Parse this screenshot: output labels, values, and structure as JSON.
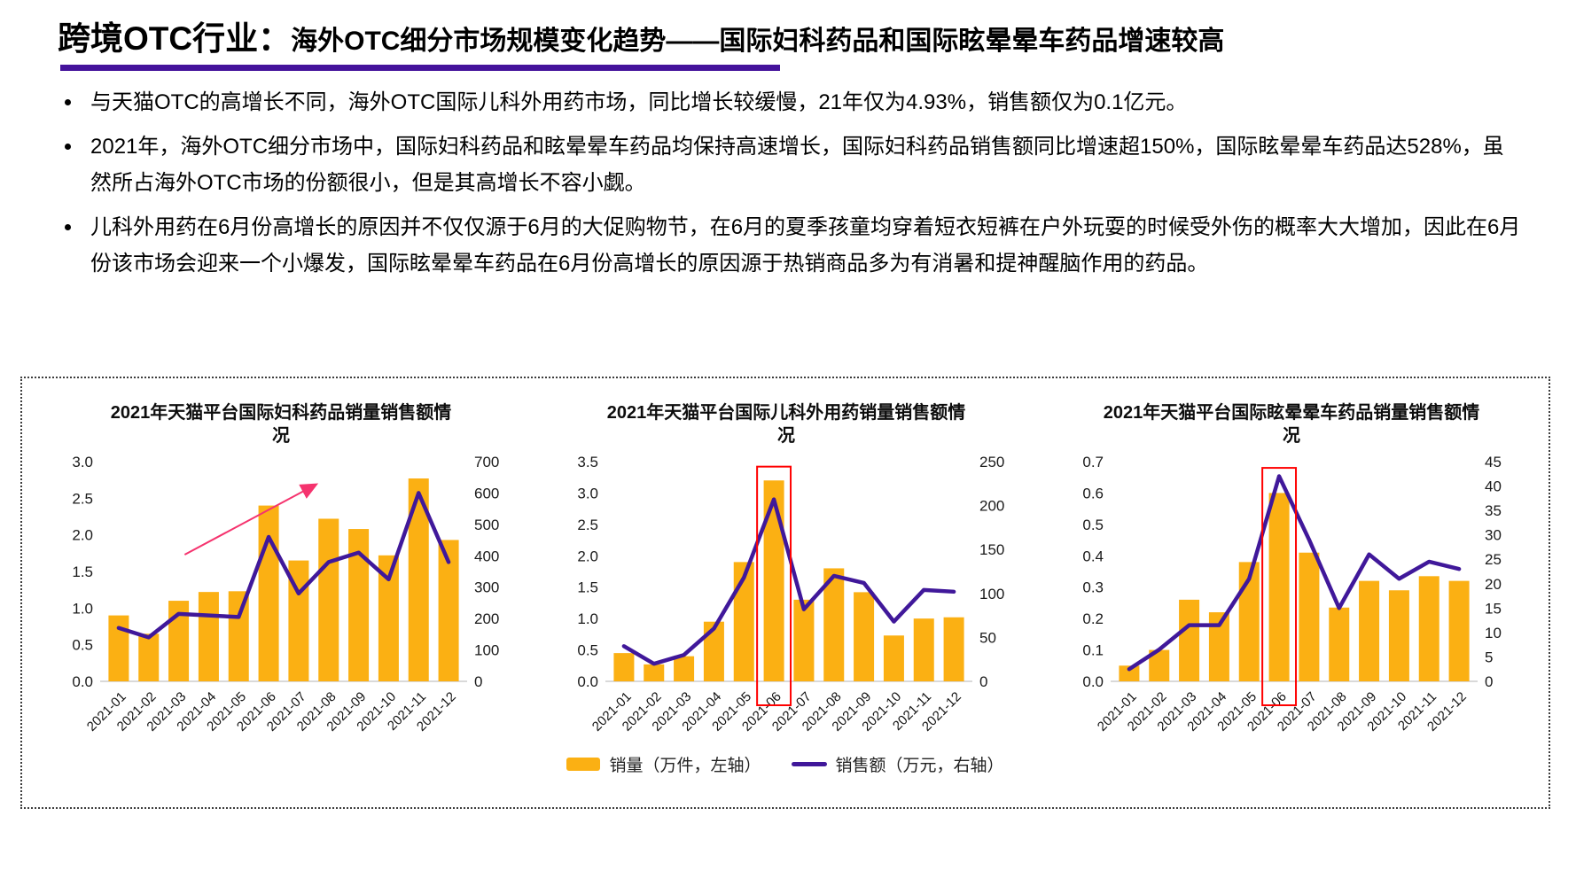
{
  "header": {
    "title_prefix": "跨境OTC行业：",
    "title_main": "海外OTC细分市场规模变化趋势——国际妇科药品和国际眩晕晕车药品增速较高"
  },
  "bullets": [
    "与天猫OTC的高增长不同，海外OTC国际儿科外用药市场，同比增长较缓慢，21年仅为4.93%，销售额仅为0.1亿元。",
    "2021年，海外OTC细分市场中，国际妇科药品和眩晕晕车药品均保持高速增长，国际妇科药品销售额同比增速超150%，国际眩晕晕车药品达528%，虽然所占海外OTC市场的份额很小，但是其高增长不容小觑。",
    "儿科外用药在6月份高增长的原因并不仅仅源于6月的大促购物节，在6月的夏季孩童均穿着短衣短裤在户外玩耍的时候受外伤的概率大大增加，因此在6月份该市场会迎来一个小爆发，国际眩晕晕车药品在6月份高增长的原因源于热销商品多为有消暑和提神醒脑作用的药品。"
  ],
  "legend": {
    "bar_label": "销量（万件，左轴）",
    "line_label": "销售额（万元，右轴）"
  },
  "colors": {
    "bar": "#FBB013",
    "line": "#40189A",
    "underline": "#44129B",
    "trend_arrow": "#F5336E",
    "highlight_box": "#FF0000",
    "axis_baseline": "#D9D9D9",
    "tick_text": "#1a1a1a"
  },
  "chart_data": [
    {
      "type": "bar",
      "title": "2021年天猫平台国际妇科药品销量销售额情况",
      "categories": [
        "2021-01",
        "2021-02",
        "2021-03",
        "2021-04",
        "2021-05",
        "2021-06",
        "2021-07",
        "2021-08",
        "2021-09",
        "2021-10",
        "2021-11",
        "2021-12"
      ],
      "series": [
        {
          "name": "销量（万件，左轴）",
          "type": "bar",
          "axis": "left",
          "values": [
            0.9,
            0.65,
            1.1,
            1.22,
            1.23,
            2.4,
            1.65,
            2.22,
            2.08,
            1.72,
            2.77,
            1.93
          ]
        },
        {
          "name": "销售额（万元，右轴）",
          "type": "line",
          "axis": "right",
          "values": [
            170,
            140,
            215,
            210,
            205,
            460,
            280,
            380,
            410,
            325,
            600,
            380
          ]
        }
      ],
      "left_axis": {
        "min": 0,
        "max": 3.0,
        "step": 0.5,
        "decimals": 1
      },
      "right_axis": {
        "min": 0,
        "max": 700,
        "step": 100,
        "decimals": 0
      },
      "annotations": [
        {
          "type": "trend-arrow",
          "from": {
            "index": 2.2,
            "value": 1.73
          },
          "to": {
            "index": 6.5,
            "value": 2.67
          }
        }
      ]
    },
    {
      "type": "bar",
      "title": "2021年天猫平台国际儿科外用药销量销售额情况",
      "categories": [
        "2021-01",
        "2021-02",
        "2021-03",
        "2021-04",
        "2021-05",
        "2021-06",
        "2021-07",
        "2021-08",
        "2021-09",
        "2021-10",
        "2021-11",
        "2021-12"
      ],
      "series": [
        {
          "name": "销量（万件，左轴）",
          "type": "bar",
          "axis": "left",
          "values": [
            0.45,
            0.27,
            0.4,
            0.95,
            1.9,
            3.2,
            1.3,
            1.8,
            1.42,
            0.73,
            1.0,
            1.02
          ]
        },
        {
          "name": "销售额（万元，右轴）",
          "type": "line",
          "axis": "right",
          "values": [
            40,
            20,
            30,
            60,
            118,
            207,
            82,
            120,
            112,
            68,
            104,
            102
          ]
        }
      ],
      "left_axis": {
        "min": 0,
        "max": 3.5,
        "step": 0.5,
        "decimals": 1
      },
      "right_axis": {
        "min": 0,
        "max": 250,
        "step": 50,
        "decimals": 0
      },
      "annotations": [
        {
          "type": "highlight-box",
          "category_index": 5,
          "top_value": 3.42
        }
      ]
    },
    {
      "type": "bar",
      "title": "2021年天猫平台国际眩晕晕车药品销量销售额情况",
      "categories": [
        "2021-01",
        "2021-02",
        "2021-03",
        "2021-04",
        "2021-05",
        "2021-06",
        "2021-07",
        "2021-08",
        "2021-09",
        "2021-10",
        "2021-11",
        "2021-12"
      ],
      "series": [
        {
          "name": "销量（万件，左轴）",
          "type": "bar",
          "axis": "left",
          "values": [
            0.05,
            0.1,
            0.26,
            0.22,
            0.38,
            0.6,
            0.41,
            0.235,
            0.32,
            0.29,
            0.335,
            0.32
          ]
        },
        {
          "name": "销售额（万元，右轴）",
          "type": "line",
          "axis": "right",
          "values": [
            2.5,
            6.5,
            11.5,
            11.5,
            21,
            42,
            29,
            15,
            26,
            21,
            24.5,
            23
          ]
        }
      ],
      "left_axis": {
        "min": 0,
        "max": 0.7,
        "step": 0.1,
        "decimals": 1
      },
      "right_axis": {
        "min": 0,
        "max": 45,
        "step": 5,
        "decimals": 0
      },
      "annotations": [
        {
          "type": "highlight-box",
          "category_index": 5,
          "top_value": 0.68
        }
      ]
    }
  ]
}
